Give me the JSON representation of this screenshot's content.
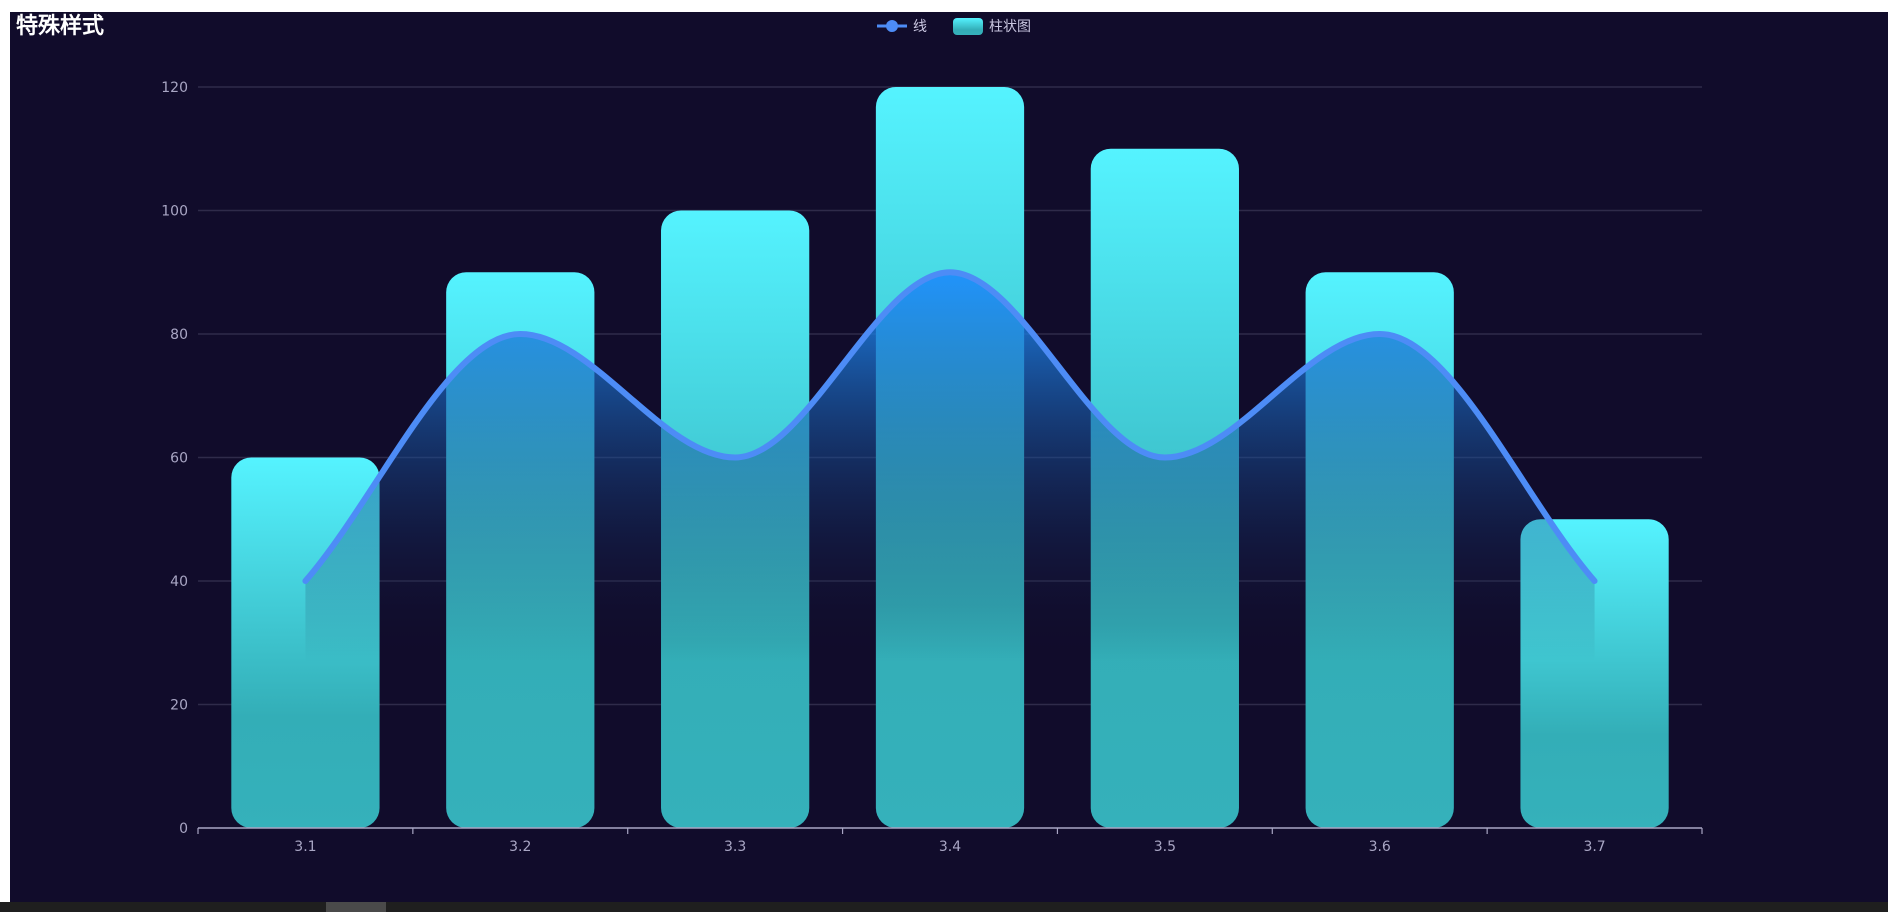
{
  "colors": {
    "background": "#110c2b",
    "line": "#4d8cf6",
    "bar_top": "#55f3ff",
    "bar_bottom": "#33aeb7",
    "area_top": "#1e90ff",
    "area_bottom": "#110c2b",
    "grid": "#2f2b4a",
    "axis": "#a9a6c4"
  },
  "chart_data": {
    "type": "bar",
    "title": "特殊样式",
    "categories": [
      "3.1",
      "3.2",
      "3.3",
      "3.4",
      "3.5",
      "3.6",
      "3.7"
    ],
    "series": [
      {
        "name": "线",
        "type": "line",
        "smooth": true,
        "area_fill": true,
        "values": [
          40,
          80,
          60,
          90,
          60,
          80,
          40
        ]
      },
      {
        "name": "柱状图",
        "type": "bar",
        "rounded": true,
        "gradient": true,
        "values": [
          60,
          90,
          100,
          120,
          110,
          90,
          50
        ]
      }
    ],
    "ylim": [
      0,
      120
    ],
    "yticks": [
      0,
      20,
      40,
      60,
      80,
      100,
      120
    ],
    "xlabel": "",
    "ylabel": "",
    "grid": true,
    "legend_position": "top-center"
  }
}
